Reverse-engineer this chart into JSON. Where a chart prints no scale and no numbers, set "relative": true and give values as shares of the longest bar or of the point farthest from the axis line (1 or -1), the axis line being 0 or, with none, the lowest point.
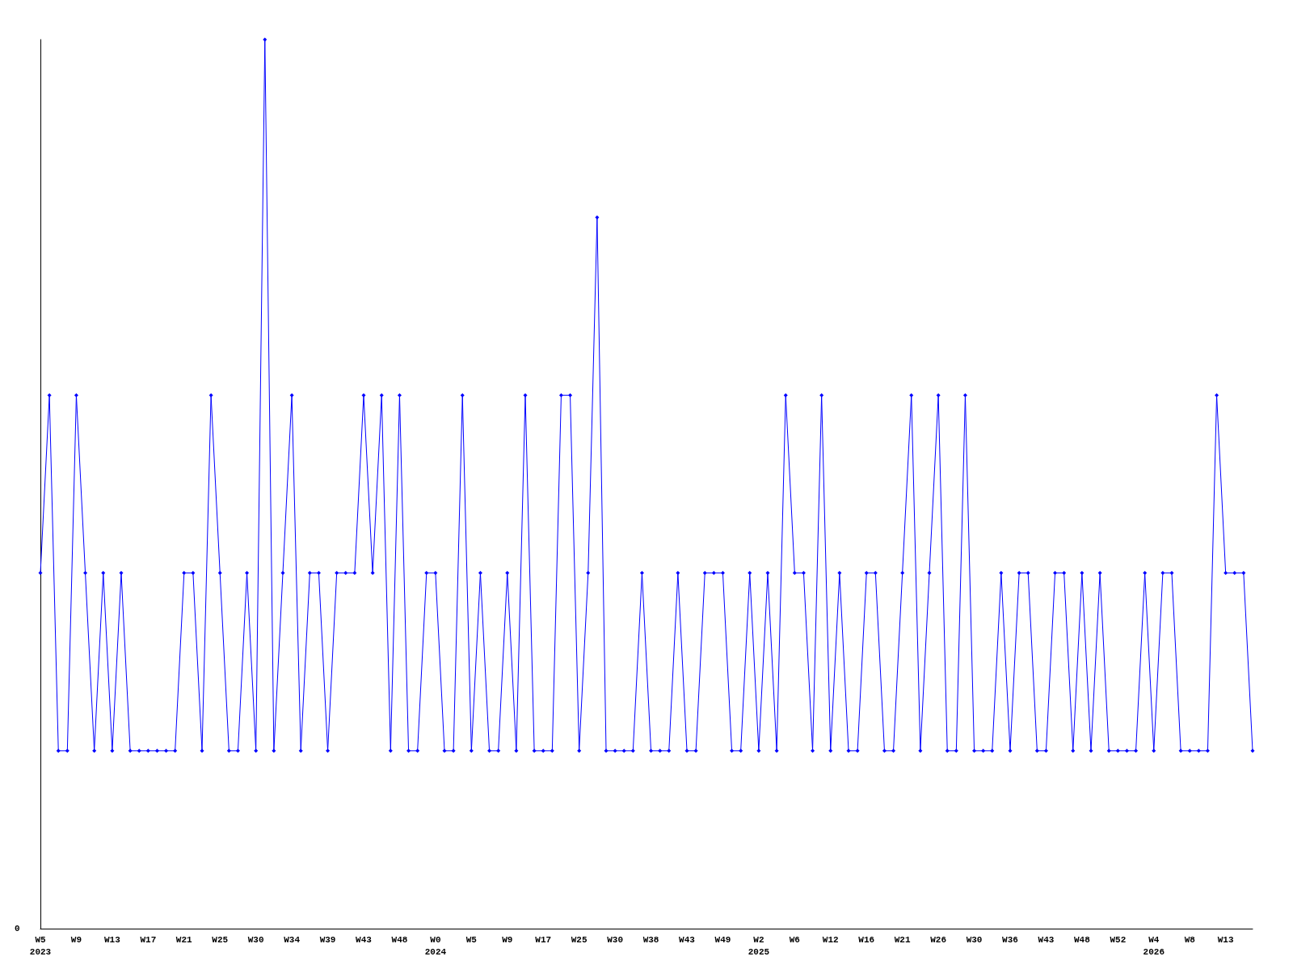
{
  "chart_data": {
    "type": "line",
    "relative": true,
    "annotations": [
      "0"
    ],
    "color": "#0000ff",
    "marker": "diamond",
    "line_style": "solid",
    "grid": false,
    "categories": [
      "W5\n2023",
      null,
      null,
      null,
      "W9",
      null,
      null,
      null,
      "W13",
      null,
      null,
      null,
      "W17",
      null,
      null,
      null,
      "W21",
      null,
      null,
      null,
      "W25",
      null,
      null,
      null,
      "W30",
      null,
      null,
      null,
      "W34",
      null,
      null,
      null,
      "W39",
      null,
      null,
      null,
      "W43",
      null,
      null,
      null,
      "W48",
      null,
      null,
      null,
      "W0\n2024",
      null,
      null,
      null,
      "W5",
      null,
      null,
      null,
      "W9",
      null,
      null,
      null,
      "W17",
      null,
      null,
      null,
      "W25",
      null,
      null,
      null,
      "W30",
      null,
      null,
      null,
      "W38",
      null,
      null,
      null,
      "W43",
      null,
      null,
      null,
      "W49",
      null,
      null,
      null,
      "W2\n2025",
      null,
      null,
      null,
      "W6",
      null,
      null,
      null,
      "W12",
      null,
      null,
      null,
      "W16",
      null,
      null,
      null,
      "W21",
      null,
      null,
      null,
      "W26",
      null,
      null,
      null,
      "W30",
      null,
      null,
      null,
      "W36",
      null,
      null,
      null,
      "W43",
      null,
      null,
      null,
      "W48",
      null,
      null,
      null,
      "W52",
      null,
      null,
      null,
      "W4\n2026",
      null,
      null,
      null,
      "W8",
      null,
      null,
      null,
      "W13",
      null,
      null,
      null
    ],
    "values": [
      0.4,
      0.6,
      0.2,
      0.2,
      0.6,
      0.4,
      0.2,
      0.4,
      0.2,
      0.4,
      0.2,
      0.2,
      0.2,
      0.2,
      0.2,
      0.2,
      0.4,
      0.4,
      0.2,
      0.6,
      0.4,
      0.2,
      0.2,
      0.4,
      0.2,
      1,
      0.2,
      0.4,
      0.6,
      0.2,
      0.4,
      0.4,
      0.2,
      0.4,
      0.4,
      0.4,
      0.6,
      0.4,
      0.6,
      0.2,
      0.6,
      0.2,
      0.2,
      0.4,
      0.4,
      0.2,
      0.2,
      0.6,
      0.2,
      0.4,
      0.2,
      0.2,
      0.4,
      0.2,
      0.6,
      0.2,
      0.2,
      0.2,
      0.6,
      0.6,
      0.2,
      0.4,
      0.8,
      0.2,
      0.2,
      0.2,
      0.2,
      0.4,
      0.2,
      0.2,
      0.2,
      0.4,
      0.2,
      0.2,
      0.4,
      0.4,
      0.4,
      0.2,
      0.2,
      0.4,
      0.2,
      0.4,
      0.2,
      0.6,
      0.4,
      0.4,
      0.2,
      0.6,
      0.2,
      0.4,
      0.2,
      0.2,
      0.4,
      0.4,
      0.2,
      0.2,
      0.4,
      0.6,
      0.2,
      0.4,
      0.6,
      0.2,
      0.2,
      0.6,
      0.2,
      0.2,
      0.2,
      0.4,
      0.2,
      0.4,
      0.4,
      0.2,
      0.2,
      0.4,
      0.4,
      0.2,
      0.4,
      0.2,
      0.4,
      0.2,
      0.2,
      0.2,
      0.2,
      0.4,
      0.2,
      0.4,
      0.4,
      0.2,
      0.2,
      0.2,
      0.2,
      0.6,
      0.4,
      0.4,
      0.4,
      0.2
    ]
  }
}
